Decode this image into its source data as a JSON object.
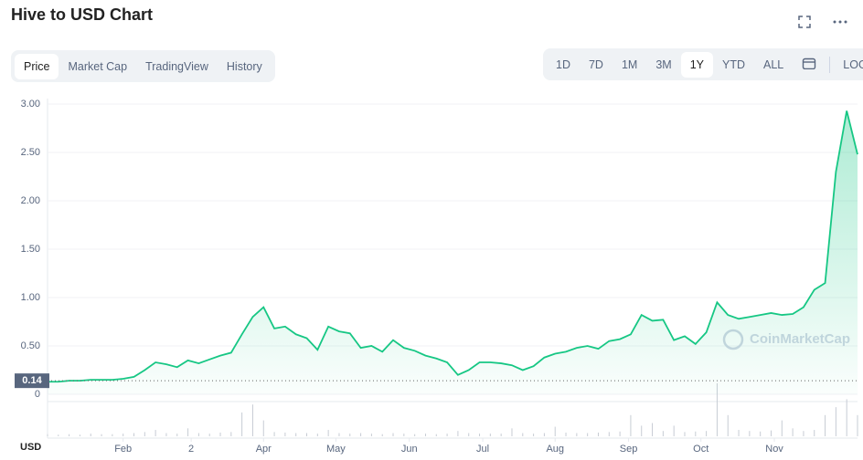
{
  "ui": {
    "title": "Hive to USD Chart",
    "tabs": [
      "Price",
      "Market Cap",
      "TradingView",
      "History"
    ],
    "active_tab": 0,
    "ranges": [
      "1D",
      "7D",
      "1M",
      "3M",
      "1Y",
      "YTD",
      "ALL"
    ],
    "active_range": 4,
    "log": "LOG"
  },
  "chart_data": {
    "type": "line",
    "color": "#16c784",
    "values": [
      0.13,
      0.13,
      0.14,
      0.14,
      0.15,
      0.15,
      0.15,
      0.16,
      0.18,
      0.25,
      0.33,
      0.31,
      0.28,
      0.35,
      0.32,
      0.36,
      0.4,
      0.43,
      0.62,
      0.8,
      0.9,
      0.68,
      0.7,
      0.62,
      0.58,
      0.46,
      0.7,
      0.65,
      0.63,
      0.48,
      0.5,
      0.44,
      0.56,
      0.48,
      0.45,
      0.4,
      0.37,
      0.33,
      0.2,
      0.25,
      0.33,
      0.33,
      0.32,
      0.3,
      0.25,
      0.29,
      0.38,
      0.42,
      0.44,
      0.48,
      0.5,
      0.47,
      0.55,
      0.57,
      0.62,
      0.82,
      0.76,
      0.77,
      0.56,
      0.6,
      0.52,
      0.64,
      0.95,
      0.82,
      0.78,
      0.8,
      0.82,
      0.84,
      0.82,
      0.83,
      0.9,
      1.08,
      1.15,
      2.3,
      2.93,
      2.48
    ],
    "volume": [
      4,
      3,
      4,
      3,
      5,
      4,
      4,
      5,
      6,
      8,
      12,
      6,
      5,
      15,
      6,
      5,
      7,
      8,
      45,
      60,
      30,
      8,
      7,
      6,
      6,
      5,
      12,
      6,
      5,
      6,
      5,
      4,
      6,
      5,
      4,
      5,
      4,
      5,
      10,
      6,
      5,
      5,
      5,
      15,
      6,
      5,
      6,
      18,
      7,
      6,
      6,
      7,
      8,
      9,
      40,
      20,
      25,
      10,
      20,
      8,
      9,
      10,
      100,
      40,
      12,
      10,
      9,
      11,
      30,
      15,
      10,
      12,
      40,
      55,
      70,
      40
    ],
    "xlim": [
      0,
      75
    ],
    "xticks": [
      {
        "value": 7,
        "label": "Feb"
      },
      {
        "value": 13.3,
        "label": "2"
      },
      {
        "value": 20,
        "label": "Apr"
      },
      {
        "value": 26.7,
        "label": "May"
      },
      {
        "value": 33.5,
        "label": "Jun"
      },
      {
        "value": 40.3,
        "label": "Jul"
      },
      {
        "value": 47,
        "label": "Aug"
      },
      {
        "value": 53.8,
        "label": "Sep"
      },
      {
        "value": 60.5,
        "label": "Oct"
      },
      {
        "value": 67.3,
        "label": "Nov"
      }
    ],
    "ylim": [
      0,
      3
    ],
    "yticks": [
      0,
      {
        "value": 0.5,
        "label": "0.50"
      },
      {
        "value": 1,
        "label": "1.00"
      },
      {
        "value": 1.5,
        "label": "1.50"
      },
      {
        "value": 2,
        "label": "2.00"
      },
      {
        "value": 2.5,
        "label": "2.50"
      },
      {
        "value": 3,
        "label": "3.00"
      }
    ],
    "reference": {
      "value": 0.14,
      "label": "0.14"
    },
    "y_unit": "USD",
    "watermark": "CoinMarketCap",
    "grid": true
  }
}
